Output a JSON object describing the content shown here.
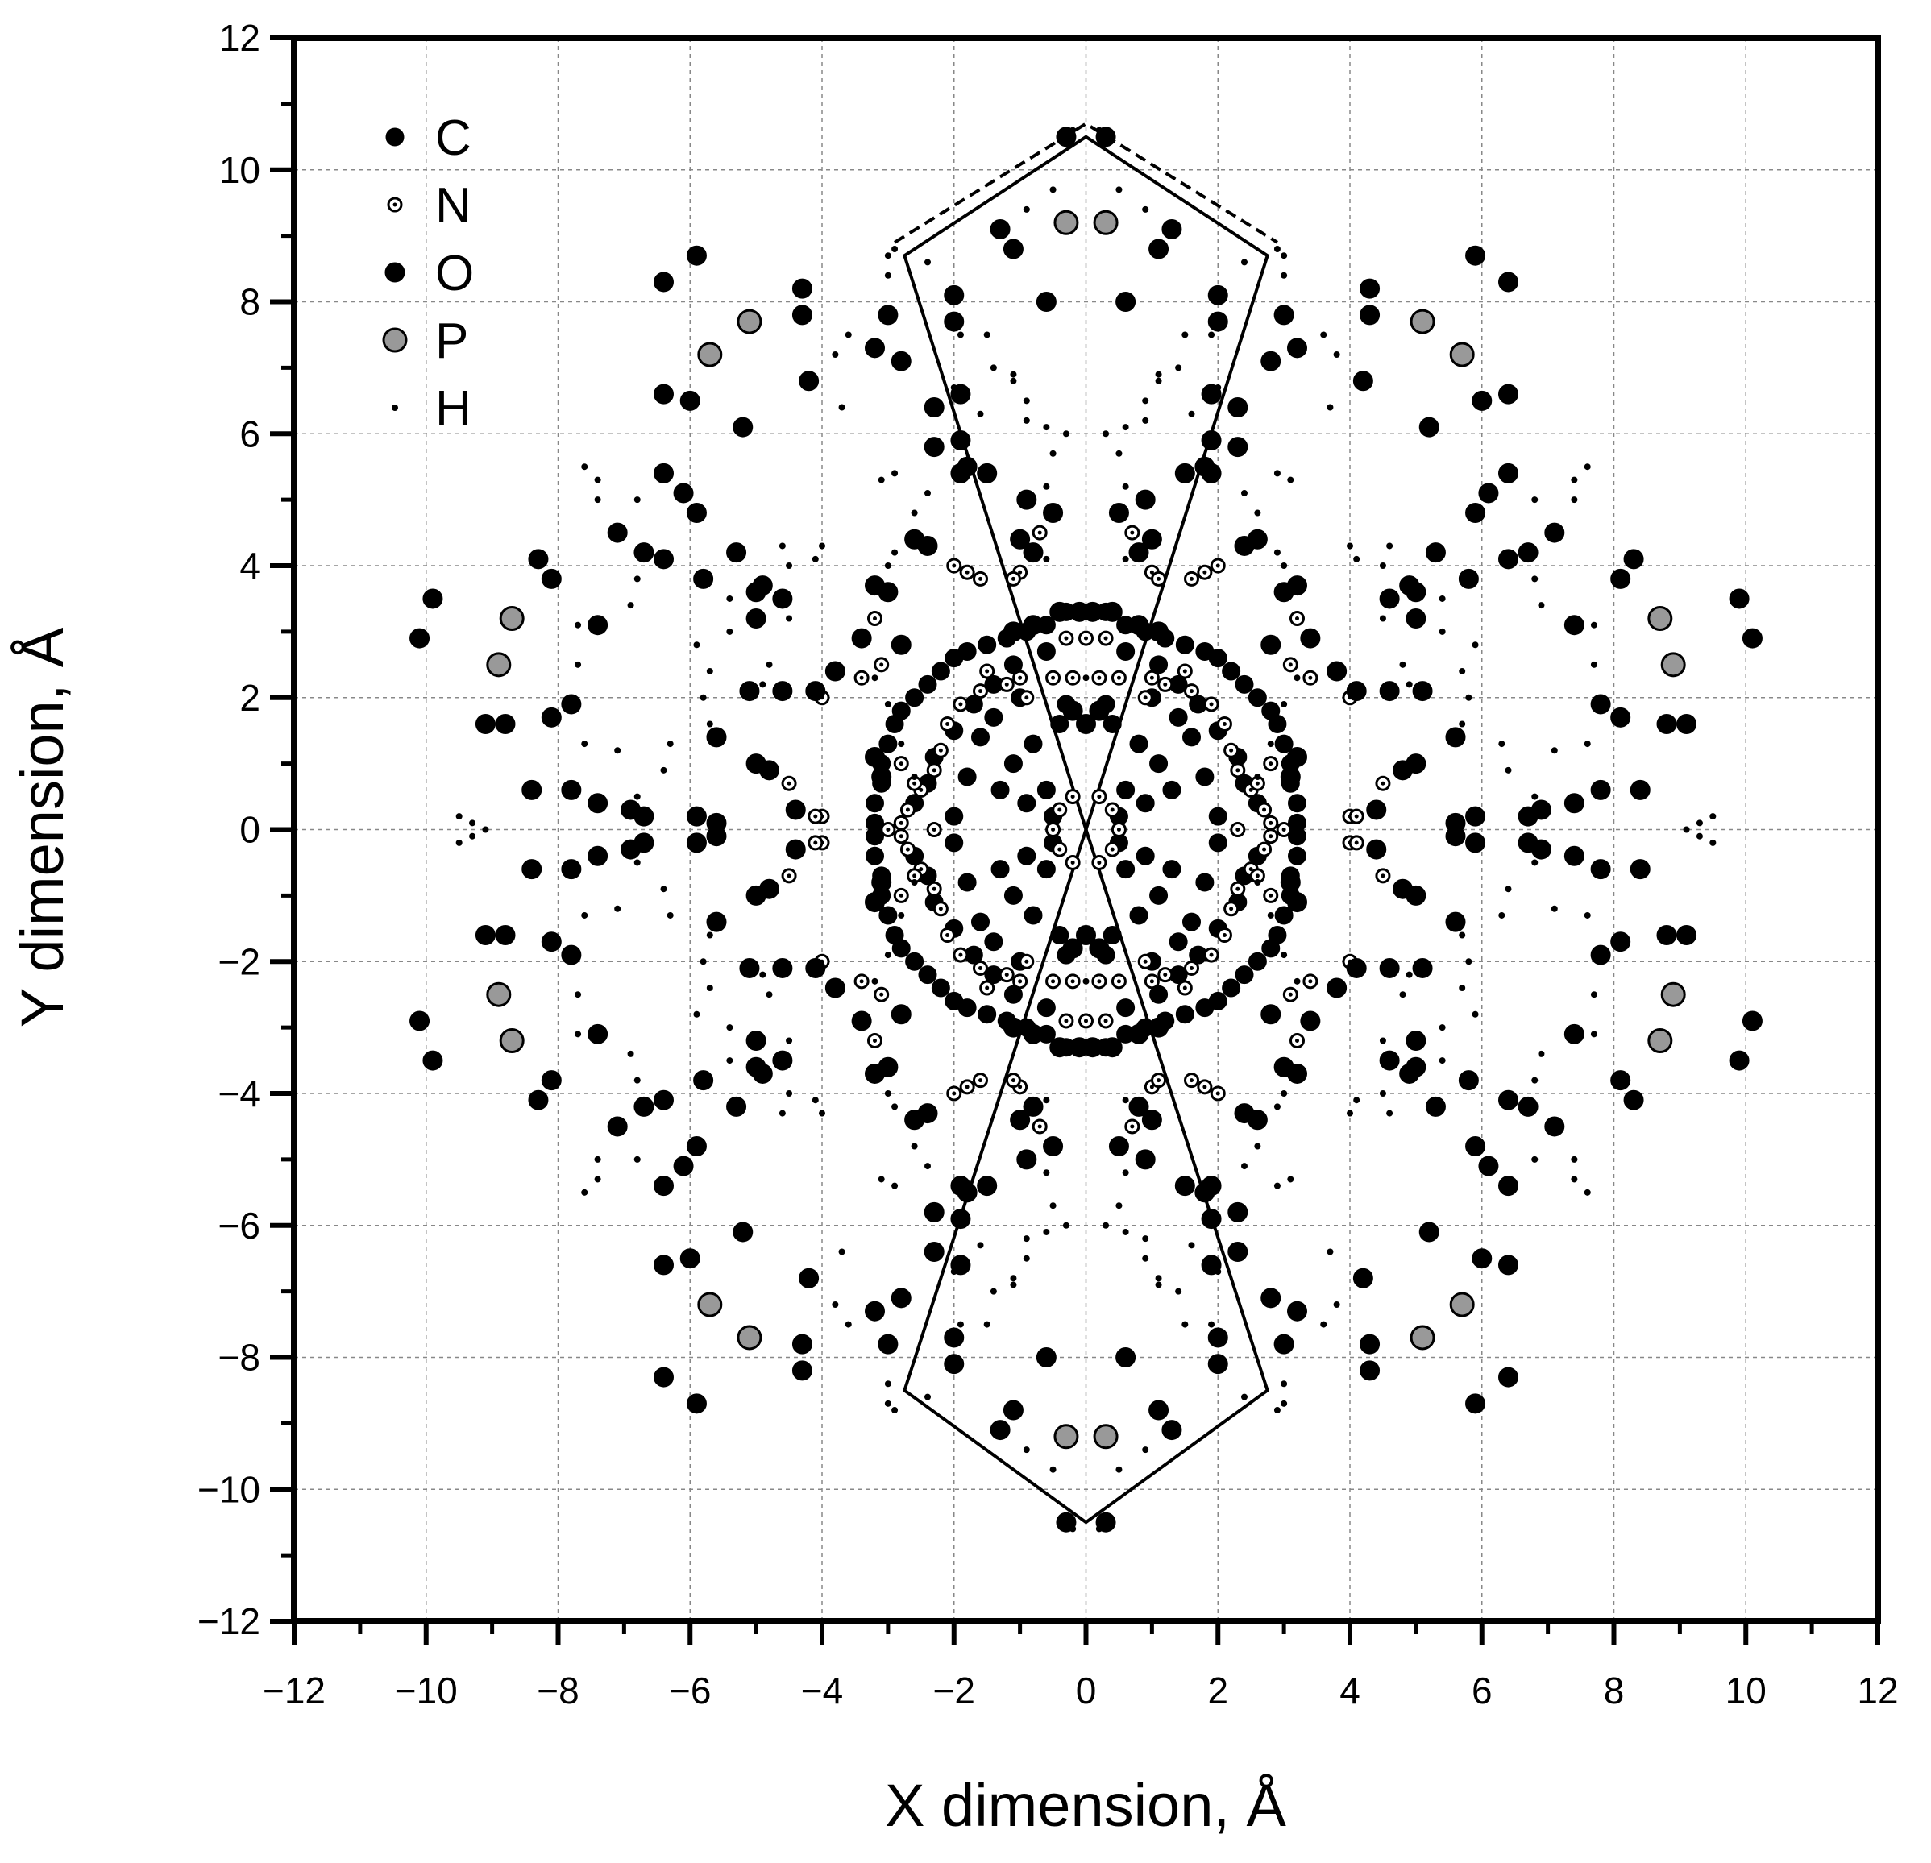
{
  "chart_data": {
    "type": "scatter",
    "title": "",
    "xlabel": "X dimension, Å",
    "ylabel": "Y dimension, Å",
    "xlim": [
      -12,
      12
    ],
    "ylim": [
      -12,
      12
    ],
    "xticks": [
      "−12",
      "−10",
      "−8",
      "−6",
      "−4",
      "−2",
      "0",
      "2",
      "4",
      "6",
      "8",
      "10",
      "12"
    ],
    "yticks": [
      "−12",
      "−10",
      "−8",
      "−6",
      "−4",
      "−2",
      "0",
      "2",
      "4",
      "6",
      "8",
      "10",
      "12"
    ],
    "grid": true,
    "legend_position": "top-left",
    "colors": {
      "C": "#000000",
      "N": "#ffffff",
      "O": "#000000",
      "P": "#999999",
      "H": "#000000"
    },
    "symmetry": "points listed for one quadrant (x>=0, y>=0) and mirrored to (±x, ±y)",
    "series": [
      {
        "name": "C",
        "marker": "filled-circle-small",
        "points": [
          [
            0.3,
            3.3
          ],
          [
            0.6,
            3.1
          ],
          [
            0.9,
            3.0
          ],
          [
            1.2,
            2.9
          ],
          [
            1.5,
            2.8
          ],
          [
            1.8,
            2.7
          ],
          [
            2.0,
            2.6
          ],
          [
            2.2,
            2.4
          ],
          [
            2.4,
            2.2
          ],
          [
            2.6,
            2.0
          ],
          [
            2.8,
            1.8
          ],
          [
            2.9,
            1.6
          ],
          [
            3.0,
            1.3
          ],
          [
            3.1,
            1.0
          ],
          [
            3.1,
            0.7
          ],
          [
            3.2,
            0.4
          ],
          [
            3.2,
            0.1
          ],
          [
            0.6,
            2.7
          ],
          [
            1.1,
            2.5
          ],
          [
            1.4,
            2.2
          ],
          [
            1.7,
            1.9
          ],
          [
            2.0,
            1.5
          ],
          [
            2.3,
            1.1
          ],
          [
            2.4,
            0.7
          ],
          [
            0.4,
            1.6
          ],
          [
            0.8,
            1.3
          ],
          [
            1.1,
            1.0
          ],
          [
            1.3,
            0.6
          ],
          [
            0.6,
            0.6
          ],
          [
            0.5,
            0.2
          ],
          [
            0.3,
            1.9
          ],
          [
            1.6,
            1.4
          ],
          [
            1.8,
            0.8
          ],
          [
            2.0,
            0.2
          ],
          [
            2.6,
            0.4
          ],
          [
            1.0,
            2.0
          ],
          [
            1.4,
            1.7
          ],
          [
            0.9,
            0.4
          ]
        ]
      },
      {
        "name": "N",
        "marker": "open-circle-small",
        "points": [
          [
            0.0,
            2.9
          ],
          [
            0.3,
            2.9
          ],
          [
            0.2,
            2.3
          ],
          [
            0.5,
            2.3
          ],
          [
            1.0,
            2.3
          ],
          [
            1.2,
            2.2
          ],
          [
            1.5,
            2.4
          ],
          [
            1.6,
            2.1
          ],
          [
            1.9,
            1.9
          ],
          [
            2.1,
            1.6
          ],
          [
            2.2,
            1.2
          ],
          [
            2.3,
            0.9
          ],
          [
            2.5,
            0.6
          ],
          [
            2.7,
            0.3
          ],
          [
            2.8,
            0.1
          ],
          [
            3.0,
            0.0
          ],
          [
            0.9,
            2.0
          ],
          [
            0.2,
            0.5
          ],
          [
            0.4,
            0.3
          ],
          [
            0.5,
            0.0
          ],
          [
            2.3,
            0.0
          ],
          [
            2.6,
            0.7
          ],
          [
            2.8,
            1.0
          ],
          [
            3.1,
            2.5
          ],
          [
            3.2,
            3.2
          ],
          [
            3.4,
            2.3
          ],
          [
            4.0,
            0.2
          ],
          [
            4.1,
            0.2
          ],
          [
            4.5,
            0.7
          ],
          [
            4.0,
            2.0
          ],
          [
            1.6,
            3.8
          ],
          [
            1.8,
            3.9
          ],
          [
            2.0,
            4.0
          ],
          [
            0.7,
            4.5
          ],
          [
            1.0,
            3.9
          ],
          [
            1.1,
            3.8
          ]
        ]
      },
      {
        "name": "O",
        "marker": "filled-circle-large",
        "points": [
          [
            0.3,
            10.5
          ],
          [
            0.6,
            8.0
          ],
          [
            1.1,
            8.8
          ],
          [
            1.3,
            9.1
          ],
          [
            2.0,
            8.1
          ],
          [
            2.0,
            7.7
          ],
          [
            1.9,
            6.6
          ],
          [
            2.3,
            6.4
          ],
          [
            1.9,
            5.9
          ],
          [
            1.8,
            5.5
          ],
          [
            1.5,
            5.4
          ],
          [
            2.4,
            4.3
          ],
          [
            2.6,
            4.4
          ],
          [
            3.2,
            3.7
          ],
          [
            3.0,
            3.6
          ],
          [
            3.8,
            2.4
          ],
          [
            4.1,
            2.1
          ],
          [
            3.2,
            1.1
          ],
          [
            3.1,
            0.8
          ],
          [
            0.1,
            3.3
          ],
          [
            0.4,
            3.3
          ],
          [
            0.0,
            1.6
          ],
          [
            0.2,
            1.8
          ],
          [
            2.8,
            7.1
          ],
          [
            3.0,
            7.8
          ],
          [
            3.2,
            7.3
          ],
          [
            4.3,
            8.2
          ],
          [
            4.3,
            7.8
          ],
          [
            4.2,
            6.8
          ],
          [
            5.9,
            8.7
          ],
          [
            6.4,
            8.3
          ],
          [
            6.4,
            6.6
          ],
          [
            6.0,
            6.5
          ],
          [
            5.2,
            6.1
          ],
          [
            6.4,
            5.4
          ],
          [
            6.1,
            5.1
          ],
          [
            5.9,
            4.8
          ],
          [
            5.3,
            4.2
          ],
          [
            5.8,
            3.8
          ],
          [
            4.6,
            3.5
          ],
          [
            5.0,
            3.6
          ],
          [
            4.9,
            3.7
          ],
          [
            5.0,
            3.2
          ],
          [
            4.6,
            2.1
          ],
          [
            5.1,
            2.1
          ],
          [
            5.6,
            1.4
          ],
          [
            5.0,
            1.0
          ],
          [
            4.8,
            0.9
          ],
          [
            4.4,
            0.3
          ],
          [
            5.6,
            0.1
          ],
          [
            5.9,
            0.2
          ],
          [
            6.7,
            0.2
          ],
          [
            6.9,
            0.3
          ],
          [
            7.4,
            0.4
          ],
          [
            7.8,
            0.6
          ],
          [
            8.1,
            1.7
          ],
          [
            7.8,
            1.9
          ],
          [
            8.4,
            0.6
          ],
          [
            9.1,
            1.6
          ],
          [
            8.8,
            1.6
          ],
          [
            8.1,
            3.8
          ],
          [
            8.3,
            4.1
          ],
          [
            9.9,
            3.5
          ],
          [
            10.1,
            2.9
          ],
          [
            7.4,
            3.1
          ],
          [
            7.1,
            4.5
          ],
          [
            6.4,
            4.1
          ],
          [
            6.7,
            4.2
          ],
          [
            2.8,
            2.8
          ],
          [
            3.4,
            2.9
          ],
          [
            0.9,
            5.0
          ],
          [
            0.5,
            4.8
          ],
          [
            0.8,
            3.1
          ],
          [
            1.0,
            4.4
          ],
          [
            0.8,
            4.2
          ],
          [
            1.1,
            3.0
          ],
          [
            2.3,
            5.8
          ],
          [
            1.9,
            5.4
          ]
        ]
      },
      {
        "name": "P",
        "marker": "gray-circle-large",
        "points": [
          [
            0.3,
            9.2
          ],
          [
            5.1,
            7.7
          ],
          [
            5.7,
            7.2
          ],
          [
            8.7,
            3.2
          ],
          [
            8.9,
            2.5
          ]
        ]
      },
      {
        "name": "H",
        "marker": "dot",
        "points": [
          [
            0.2,
            10.6
          ],
          [
            0.5,
            9.7
          ],
          [
            0.9,
            9.4
          ],
          [
            2.4,
            8.6
          ],
          [
            2.9,
            8.8
          ],
          [
            3.0,
            8.7
          ],
          [
            3.0,
            8.4
          ],
          [
            1.9,
            7.5
          ],
          [
            1.5,
            7.5
          ],
          [
            1.4,
            7.0
          ],
          [
            1.1,
            6.9
          ],
          [
            0.9,
            6.5
          ],
          [
            0.9,
            6.2
          ],
          [
            0.6,
            6.1
          ],
          [
            0.3,
            6.0
          ],
          [
            0.5,
            5.7
          ],
          [
            0.6,
            5.2
          ],
          [
            1.6,
            6.3
          ],
          [
            2.9,
            5.4
          ],
          [
            3.1,
            5.3
          ],
          [
            2.4,
            5.1
          ],
          [
            2.6,
            4.8
          ],
          [
            2.9,
            4.2
          ],
          [
            3.0,
            4.0
          ],
          [
            3.6,
            7.5
          ],
          [
            3.8,
            7.2
          ],
          [
            3.7,
            6.4
          ],
          [
            4.0,
            4.3
          ],
          [
            4.1,
            4.1
          ],
          [
            4.6,
            4.3
          ],
          [
            4.5,
            4.0
          ],
          [
            4.5,
            3.2
          ],
          [
            5.4,
            3.5
          ],
          [
            5.4,
            3.0
          ],
          [
            5.7,
            2.4
          ],
          [
            5.8,
            2.0
          ],
          [
            5.7,
            1.6
          ],
          [
            6.3,
            1.3
          ],
          [
            6.4,
            0.9
          ],
          [
            6.8,
            0.5
          ],
          [
            7.1,
            1.2
          ],
          [
            7.6,
            1.3
          ],
          [
            7.7,
            2.5
          ],
          [
            7.7,
            3.1
          ],
          [
            6.9,
            3.4
          ],
          [
            6.8,
            3.8
          ],
          [
            7.6,
            5.5
          ],
          [
            7.4,
            5.3
          ],
          [
            7.4,
            5.0
          ],
          [
            6.8,
            5.0
          ],
          [
            5.9,
            2.8
          ],
          [
            9.5,
            0.2
          ],
          [
            9.3,
            0.1
          ],
          [
            9.1,
            0.0
          ],
          [
            2.6,
            0.8
          ],
          [
            2.8,
            1.3
          ],
          [
            3.0,
            1.9
          ],
          [
            3.2,
            2.3
          ],
          [
            1.1,
            6.8
          ],
          [
            2.0,
            6.7
          ],
          [
            4.8,
            2.5
          ],
          [
            4.9,
            2.2
          ],
          [
            0.0,
            2.3
          ],
          [
            0.6,
            4.1
          ]
        ]
      }
    ],
    "reference_lines": [
      {
        "style": "solid",
        "points": [
          [
            0,
            0
          ],
          [
            2.75,
            8.7
          ],
          [
            0,
            10.5
          ],
          [
            -2.75,
            8.7
          ],
          [
            0,
            0
          ],
          [
            -2.75,
            -8.5
          ],
          [
            0,
            -10.5
          ],
          [
            2.75,
            -8.5
          ],
          [
            0,
            0
          ]
        ]
      },
      {
        "style": "dashed",
        "points": [
          [
            -2.9,
            8.9
          ],
          [
            0,
            10.7
          ],
          [
            2.9,
            8.9
          ]
        ]
      }
    ]
  }
}
